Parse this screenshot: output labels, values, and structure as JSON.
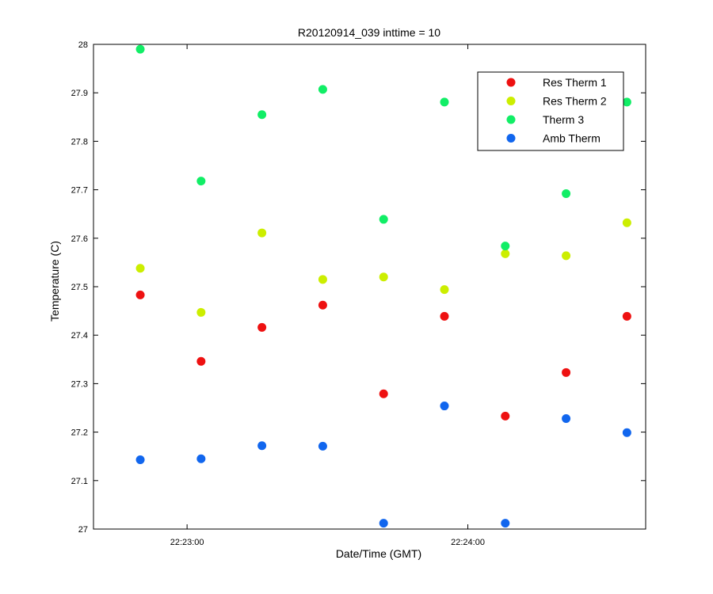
{
  "chart_data": {
    "type": "scatter",
    "title": "R20120914_039 inttime = 10",
    "xlabel": "Date/Time (GMT)",
    "ylabel": "Temperature (C)",
    "ylim": [
      27,
      28
    ],
    "xlim": [
      "22:22:40",
      "22:24:38"
    ],
    "y_ticks": [
      "27",
      "27.1",
      "27.2",
      "27.3",
      "27.4",
      "27.5",
      "27.6",
      "27.7",
      "27.8",
      "27.9",
      "28"
    ],
    "x_ticks": [
      {
        "label": "22:23:00",
        "time": "22:23:00"
      },
      {
        "label": "22:24:00",
        "time": "22:24:00"
      }
    ],
    "grid": false,
    "legend_position": "top-right",
    "x": [
      "22:22:50",
      "22:23:03",
      "22:23:16",
      "22:23:29",
      "22:23:42",
      "22:23:55",
      "22:24:08",
      "22:24:21",
      "22:24:34"
    ],
    "series": [
      {
        "name": "Res Therm 1",
        "color": "#ee1111",
        "values": [
          27.483,
          27.346,
          27.416,
          27.462,
          27.279,
          27.439,
          27.233,
          27.323,
          27.439
        ]
      },
      {
        "name": "Res Therm 2",
        "color": "#ccee00",
        "values": [
          27.538,
          27.447,
          27.611,
          27.515,
          27.52,
          27.494,
          27.568,
          27.564,
          27.632
        ]
      },
      {
        "name": "Therm 3",
        "color": "#11ee66",
        "values": [
          27.99,
          27.718,
          27.855,
          27.907,
          27.639,
          27.881,
          27.584,
          27.692,
          27.881
        ]
      },
      {
        "name": "Amb Therm",
        "color": "#1166ee",
        "values": [
          27.143,
          27.145,
          27.172,
          27.171,
          27.012,
          27.254,
          27.012,
          27.228,
          27.199
        ]
      }
    ]
  }
}
